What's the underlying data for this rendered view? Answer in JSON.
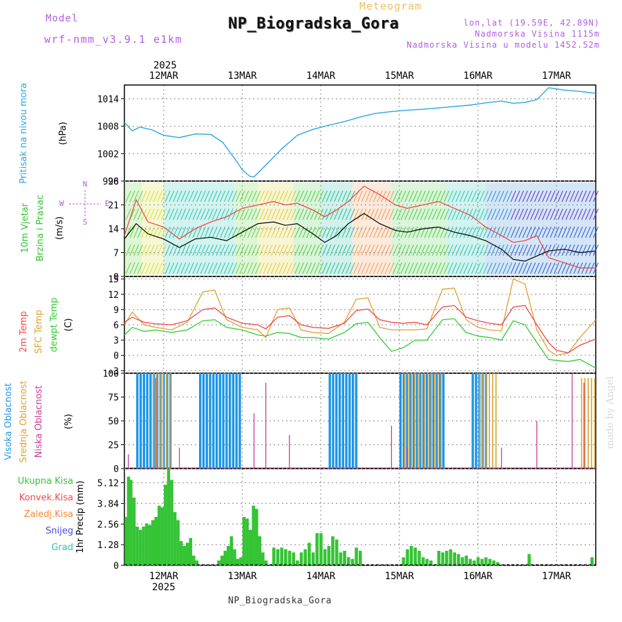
{
  "header": {
    "label_meteogram": "Meteogram",
    "station_title": "NP_Biogradska_Gora",
    "model_label": "Model",
    "model_value": "wrf-nmm_v3.9.1 e1km",
    "coords": "lon,lat (19.59E, 42.89N)",
    "altitude": "Nadmorska Visina 1115m",
    "model_altitude": "Nadmorska Visina u modelu 1452.52m",
    "footer_station": "NP_Biogradska_Gora",
    "watermark": "made by Angel"
  },
  "colors": {
    "pressure": "#2aa6e0",
    "temp2m": "#f04848",
    "sfc": "#e0a030",
    "dewpt": "#30cc30",
    "high_cloud": "#1e96e6",
    "mid_cloud": "#e0a030",
    "low_cloud": "#c83c96",
    "precip": "#34c434",
    "label_purple": "#b05ee0",
    "label_orange": "#f0c060"
  },
  "chart_data": [
    {
      "type": "line",
      "panel": "pressure",
      "ylabel_left": "Pritisak na nivou mora",
      "ylabel_unit": "(hPa)",
      "year_label": "2025",
      "x_ticks": [
        "12MAR",
        "13MAR",
        "14MAR",
        "15MAR",
        "16MAR",
        "17MAR"
      ],
      "x_range_days": [
        11.5,
        17.5
      ],
      "y_ticks": [
        "996",
        "1002",
        "1008",
        "1014"
      ],
      "ylim": [
        996,
        1017
      ],
      "grid": true,
      "series": [
        {
          "x": [
            11.5,
            11.6,
            11.7,
            11.85,
            12.0,
            12.2,
            12.4,
            12.6,
            12.75,
            12.9,
            13.0,
            13.1,
            13.15,
            13.3,
            13.5,
            13.7,
            13.9,
            14.1,
            14.3,
            14.5,
            14.7,
            14.9,
            15.1,
            15.3,
            15.5,
            15.7,
            15.9,
            16.1,
            16.3,
            16.45,
            16.6,
            16.75,
            16.9,
            17.1,
            17.3,
            17.5
          ],
          "y": [
            1008.8,
            1007.0,
            1007.8,
            1007.2,
            1006.0,
            1005.5,
            1006.3,
            1006.2,
            1004.5,
            1001.0,
            998.5,
            997.0,
            996.9,
            999.5,
            1003.0,
            1006.0,
            1007.3,
            1008.2,
            1009.0,
            1010.0,
            1010.8,
            1011.2,
            1011.5,
            1011.7,
            1012.0,
            1012.3,
            1012.6,
            1013.1,
            1013.5,
            1013.0,
            1013.2,
            1013.8,
            1016.4,
            1015.9,
            1015.6,
            1015.2
          ]
        }
      ]
    },
    {
      "type": "line",
      "panel": "wind",
      "ylabel_left": "10m Vjetar",
      "ylabel_left2": "Brzina i Pravac",
      "ylabel_unit": "(m/s)",
      "compass": [
        "N",
        "S",
        "W",
        "E"
      ],
      "y_ticks": [
        "0",
        "7",
        "14",
        "21",
        "28"
      ],
      "ylim": [
        0,
        28
      ],
      "grid": true,
      "series": [
        {
          "name": "speed",
          "x": [
            11.5,
            11.65,
            11.8,
            12.0,
            12.2,
            12.4,
            12.6,
            12.8,
            13.0,
            13.2,
            13.4,
            13.55,
            13.7,
            13.9,
            14.05,
            14.2,
            14.35,
            14.55,
            14.75,
            14.95,
            15.1,
            15.3,
            15.5,
            15.7,
            15.9,
            16.1,
            16.3,
            16.45,
            16.6,
            16.75,
            16.9,
            17.1,
            17.3,
            17.5
          ],
          "y": [
            11,
            15.5,
            12.5,
            11.0,
            8.5,
            11.0,
            11.5,
            10.5,
            13.0,
            15.5,
            16.0,
            15.0,
            15.5,
            12.5,
            10.0,
            12.0,
            15.5,
            18.5,
            15.5,
            13.5,
            13.0,
            14.0,
            14.5,
            13.0,
            12.0,
            10.5,
            8.0,
            5.0,
            4.5,
            6.0,
            7.5,
            8.0,
            7.0,
            7.5
          ]
        },
        {
          "name": "gust",
          "x": [
            11.5,
            11.65,
            11.8,
            12.0,
            12.2,
            12.4,
            12.6,
            12.8,
            13.0,
            13.2,
            13.4,
            13.55,
            13.7,
            13.9,
            14.05,
            14.2,
            14.35,
            14.55,
            14.75,
            14.95,
            15.1,
            15.3,
            15.5,
            15.7,
            15.9,
            16.1,
            16.3,
            16.45,
            16.6,
            16.75,
            16.9,
            17.1,
            17.3,
            17.5
          ],
          "y": [
            12,
            22.5,
            16,
            14.5,
            11,
            14,
            16,
            17.5,
            20,
            21,
            22,
            21,
            21.5,
            19.5,
            17.5,
            19.5,
            22,
            26.5,
            24,
            21,
            20,
            21,
            22,
            20,
            18,
            14.5,
            12,
            10,
            10.5,
            12,
            5.5,
            4,
            2.5,
            2.5
          ]
        }
      ]
    },
    {
      "type": "line",
      "panel": "temperature",
      "ylabel_parts": [
        "2m Temp",
        "SFC Temp",
        "dewpt Temp"
      ],
      "ylabel_unit": "(C)",
      "y_ticks": [
        "-3",
        "0",
        "3",
        "6",
        "9",
        "12",
        "15"
      ],
      "ylim": [
        -3.5,
        15.5
      ],
      "grid": true,
      "series": [
        {
          "name": "2m Temp",
          "x": [
            11.5,
            11.6,
            11.75,
            11.9,
            12.1,
            12.3,
            12.5,
            12.65,
            12.8,
            13.0,
            13.2,
            13.3,
            13.45,
            13.6,
            13.75,
            13.9,
            14.1,
            14.3,
            14.45,
            14.6,
            14.75,
            14.9,
            15.05,
            15.2,
            15.35,
            15.55,
            15.7,
            15.85,
            16.0,
            16.15,
            16.3,
            16.45,
            16.6,
            16.75,
            16.9,
            17.0,
            17.15,
            17.3,
            17.5
          ],
          "y": [
            6.5,
            7.5,
            6.5,
            6.2,
            6.0,
            6.8,
            9.0,
            9.3,
            7.5,
            6.3,
            6.0,
            5.2,
            7.5,
            7.8,
            6.0,
            5.5,
            5.3,
            6.3,
            8.8,
            9.1,
            7.0,
            6.5,
            6.3,
            6.5,
            6.0,
            9.5,
            9.8,
            7.5,
            6.8,
            6.3,
            6.0,
            9.5,
            9.8,
            6.0,
            2.5,
            1.0,
            0.5,
            2.0,
            3.2
          ]
        },
        {
          "name": "SFC Temp",
          "x": [
            11.5,
            11.6,
            11.75,
            11.9,
            12.1,
            12.3,
            12.5,
            12.65,
            12.8,
            13.0,
            13.2,
            13.3,
            13.45,
            13.6,
            13.75,
            13.9,
            14.1,
            14.3,
            14.45,
            14.6,
            14.75,
            14.9,
            15.05,
            15.2,
            15.35,
            15.55,
            15.7,
            15.85,
            16.0,
            16.15,
            16.3,
            16.45,
            16.6,
            16.75,
            16.9,
            17.0,
            17.15,
            17.3,
            17.5
          ],
          "y": [
            6.0,
            8.5,
            6.0,
            5.5,
            5.0,
            6.5,
            12.5,
            12.8,
            7.0,
            5.5,
            5.0,
            3.5,
            9.0,
            9.3,
            5.0,
            4.5,
            4.3,
            6.5,
            11.0,
            11.3,
            5.5,
            5.0,
            5.0,
            5.0,
            5.2,
            13.0,
            13.2,
            7.0,
            5.5,
            5.0,
            4.8,
            15.0,
            14.0,
            5.0,
            1.0,
            0.0,
            0.5,
            3.5,
            7.0
          ]
        },
        {
          "name": "dewpt Temp",
          "x": [
            11.5,
            11.6,
            11.75,
            11.9,
            12.1,
            12.3,
            12.5,
            12.65,
            12.8,
            13.0,
            13.2,
            13.3,
            13.45,
            13.6,
            13.75,
            13.9,
            14.1,
            14.3,
            14.45,
            14.6,
            14.75,
            14.9,
            15.05,
            15.2,
            15.35,
            15.55,
            15.7,
            15.85,
            16.0,
            16.15,
            16.3,
            16.45,
            16.6,
            16.75,
            16.9,
            17.0,
            17.15,
            17.3,
            17.5
          ],
          "y": [
            4.0,
            5.5,
            4.7,
            5.0,
            4.5,
            5.0,
            6.8,
            7.0,
            5.5,
            5.0,
            4.0,
            3.8,
            4.5,
            4.3,
            3.5,
            3.5,
            3.2,
            4.5,
            6.2,
            6.5,
            3.5,
            0.8,
            1.5,
            3.0,
            3.0,
            7.0,
            7.2,
            4.5,
            3.8,
            3.5,
            3.0,
            6.8,
            6.0,
            2.5,
            -0.8,
            -1.0,
            -1.2,
            -0.8,
            -2.5
          ]
        }
      ]
    },
    {
      "type": "bar",
      "panel": "cloud",
      "ylabel_parts": [
        "Visoka Oblacnost",
        "Srednja Oblacnost",
        "Niska Oblacnost"
      ],
      "ylabel_unit": "(%)",
      "y_ticks": [
        "0",
        "25",
        "50",
        "75",
        "100"
      ],
      "ylim": [
        0,
        100
      ],
      "grid": true,
      "high_cloud_blocks": [
        {
          "from": 11.65,
          "to": 12.1,
          "value": 100
        },
        {
          "from": 12.45,
          "to": 12.98,
          "value": 100
        },
        {
          "from": 14.1,
          "to": 14.45,
          "value": 100
        },
        {
          "from": 15.0,
          "to": 15.55,
          "value": 100
        },
        {
          "from": 15.92,
          "to": 16.1,
          "value": 100
        }
      ],
      "mid_cloud_blocks": [
        {
          "from": 11.85,
          "to": 12.08,
          "value": 100
        },
        {
          "from": 15.05,
          "to": 15.55,
          "value": 100
        },
        {
          "from": 16.0,
          "to": 16.25,
          "value": 100
        },
        {
          "from": 17.3,
          "to": 17.5,
          "value": 95
        }
      ],
      "low_cloud_spikes": [
        {
          "x": 11.55,
          "value": 15
        },
        {
          "x": 11.9,
          "value": 95
        },
        {
          "x": 12.2,
          "value": 22
        },
        {
          "x": 13.15,
          "value": 58
        },
        {
          "x": 13.3,
          "value": 90
        },
        {
          "x": 13.6,
          "value": 35
        },
        {
          "x": 14.9,
          "value": 45
        },
        {
          "x": 15.1,
          "value": 22
        },
        {
          "x": 16.3,
          "value": 22
        },
        {
          "x": 16.75,
          "value": 50
        },
        {
          "x": 17.2,
          "value": 100
        },
        {
          "x": 17.35,
          "value": 90
        }
      ]
    },
    {
      "type": "bar",
      "panel": "precipitation",
      "ylabel_main": "1hr Precip (mm)",
      "legend": [
        "Ukupna Kisa",
        "Konvek.Kisa",
        "Zaledj.Kisa",
        "Snijeg",
        "Grad"
      ],
      "legend_colors": [
        "#34c434",
        "#f04848",
        "#f08a30",
        "#4848f0",
        "#30c0c0"
      ],
      "y_ticks": [
        "0",
        "1.28",
        "2.56",
        "3.84",
        "5.12"
      ],
      "ylim": [
        0,
        6.0
      ],
      "grid": true,
      "x_ticks_bottom": [
        "12MAR",
        "13MAR",
        "14MAR",
        "15MAR",
        "16MAR",
        "17MAR"
      ],
      "year_label_bottom": "2025",
      "x": [
        11.52,
        11.55,
        11.58,
        11.62,
        11.66,
        11.7,
        11.74,
        11.78,
        11.82,
        11.86,
        11.9,
        11.94,
        11.98,
        12.02,
        12.06,
        12.1,
        12.14,
        12.18,
        12.22,
        12.26,
        12.3,
        12.34,
        12.38,
        12.42,
        12.7,
        12.74,
        12.78,
        12.82,
        12.86,
        12.9,
        12.94,
        12.98,
        13.02,
        13.06,
        13.1,
        13.14,
        13.18,
        13.22,
        13.26,
        13.3,
        13.4,
        13.45,
        13.5,
        13.55,
        13.6,
        13.65,
        13.7,
        13.75,
        13.8,
        13.85,
        13.9,
        13.95,
        14.0,
        14.05,
        14.1,
        14.15,
        14.2,
        14.25,
        14.3,
        14.35,
        14.4,
        14.45,
        14.5,
        15.05,
        15.1,
        15.15,
        15.2,
        15.25,
        15.3,
        15.35,
        15.4,
        15.5,
        15.55,
        15.6,
        15.65,
        15.7,
        15.75,
        15.8,
        15.85,
        15.9,
        15.95,
        16.0,
        16.05,
        16.1,
        16.15,
        16.2,
        16.25,
        16.65,
        17.45
      ],
      "values": [
        3.0,
        5.5,
        5.3,
        4.2,
        2.4,
        2.2,
        2.4,
        2.6,
        2.5,
        2.8,
        3.0,
        3.7,
        3.6,
        5.0,
        6.0,
        5.3,
        3.3,
        2.8,
        1.5,
        1.2,
        1.4,
        1.7,
        0.6,
        0.3,
        0.3,
        0.6,
        0.9,
        1.2,
        1.8,
        1.0,
        0.4,
        0.5,
        3.0,
        2.9,
        2.2,
        3.7,
        3.5,
        1.8,
        0.8,
        0.3,
        1.1,
        1.0,
        1.1,
        1.0,
        0.9,
        0.8,
        0.3,
        0.8,
        1.0,
        1.4,
        0.8,
        2.0,
        2.0,
        1.0,
        1.2,
        1.8,
        1.6,
        0.8,
        0.9,
        0.5,
        0.4,
        1.1,
        0.9,
        0.5,
        1.0,
        1.2,
        1.1,
        0.9,
        0.5,
        0.4,
        0.3,
        0.9,
        0.8,
        0.9,
        1.0,
        0.8,
        0.7,
        0.5,
        0.6,
        0.4,
        0.3,
        0.5,
        0.4,
        0.5,
        0.4,
        0.3,
        0.2,
        0.7,
        0.5
      ]
    }
  ]
}
